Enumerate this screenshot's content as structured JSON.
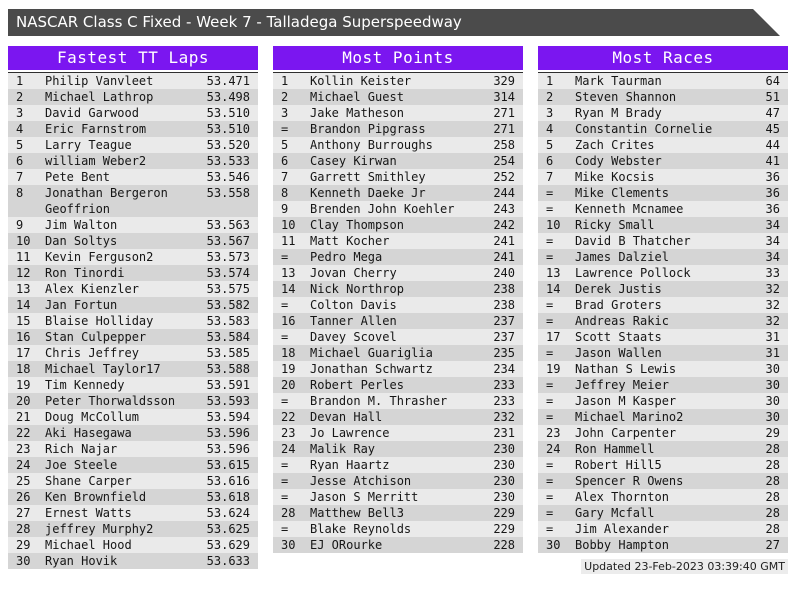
{
  "title_bar": {
    "text": "NASCAR Class C Fixed - Week 7 - Talladega Superspeedway"
  },
  "footer": {
    "updated": "Updated 23-Feb-2023 03:39:40 GMT"
  },
  "colors": {
    "accent_purple": "#7b16f0",
    "title_bar_bg": "#4b4b4b",
    "row_light": "#eaeaea",
    "row_dark": "#d5d5d5",
    "divider": "#2e2e2e"
  },
  "tables": [
    {
      "title": "Fastest TT Laps",
      "rows": [
        {
          "rank": "1",
          "name": "Philip Vanvleet",
          "value": "53.471"
        },
        {
          "rank": "2",
          "name": "Michael Lathrop",
          "value": "53.498"
        },
        {
          "rank": "3",
          "name": "David Garwood",
          "value": "53.510"
        },
        {
          "rank": "4",
          "name": "Eric Farnstrom",
          "value": "53.510"
        },
        {
          "rank": "5",
          "name": "Larry Teague",
          "value": "53.520"
        },
        {
          "rank": "6",
          "name": "william Weber2",
          "value": "53.533"
        },
        {
          "rank": "7",
          "name": "Pete Bent",
          "value": "53.546"
        },
        {
          "rank": "8",
          "name": "Jonathan Bergeron Geoffrion",
          "value": "53.558"
        },
        {
          "rank": "9",
          "name": "Jim Walton",
          "value": "53.563"
        },
        {
          "rank": "10",
          "name": "Dan Soltys",
          "value": "53.567"
        },
        {
          "rank": "11",
          "name": "Kevin Ferguson2",
          "value": "53.573"
        },
        {
          "rank": "12",
          "name": "Ron Tinordi",
          "value": "53.574"
        },
        {
          "rank": "13",
          "name": "Alex Kienzler",
          "value": "53.575"
        },
        {
          "rank": "14",
          "name": "Jan Fortun",
          "value": "53.582"
        },
        {
          "rank": "15",
          "name": "Blaise Holliday",
          "value": "53.583"
        },
        {
          "rank": "16",
          "name": "Stan Culpepper",
          "value": "53.584"
        },
        {
          "rank": "17",
          "name": "Chris Jeffrey",
          "value": "53.585"
        },
        {
          "rank": "18",
          "name": "Michael Taylor17",
          "value": "53.588"
        },
        {
          "rank": "19",
          "name": "Tim Kennedy",
          "value": "53.591"
        },
        {
          "rank": "20",
          "name": "Peter Thorwaldsson",
          "value": "53.593"
        },
        {
          "rank": "21",
          "name": "Doug McCollum",
          "value": "53.594"
        },
        {
          "rank": "22",
          "name": "Aki Hasegawa",
          "value": "53.596"
        },
        {
          "rank": "23",
          "name": "Rich Najar",
          "value": "53.596"
        },
        {
          "rank": "24",
          "name": "Joe Steele",
          "value": "53.615"
        },
        {
          "rank": "25",
          "name": "Shane Carper",
          "value": "53.616"
        },
        {
          "rank": "26",
          "name": "Ken Brownfield",
          "value": "53.618"
        },
        {
          "rank": "27",
          "name": "Ernest Watts",
          "value": "53.624"
        },
        {
          "rank": "28",
          "name": "jeffrey Murphy2",
          "value": "53.625"
        },
        {
          "rank": "29",
          "name": "Michael Hood",
          "value": "53.629"
        },
        {
          "rank": "30",
          "name": "Ryan Hovik",
          "value": "53.633"
        }
      ]
    },
    {
      "title": "Most Points",
      "rows": [
        {
          "rank": "1",
          "name": "Kollin Keister",
          "value": "329"
        },
        {
          "rank": "2",
          "name": "Michael Guest",
          "value": "314"
        },
        {
          "rank": "3",
          "name": "Jake Matheson",
          "value": "271"
        },
        {
          "rank": "=",
          "name": "Brandon Pipgrass",
          "value": "271"
        },
        {
          "rank": "5",
          "name": "Anthony Burroughs",
          "value": "258"
        },
        {
          "rank": "6",
          "name": "Casey Kirwan",
          "value": "254"
        },
        {
          "rank": "7",
          "name": "Garrett Smithley",
          "value": "252"
        },
        {
          "rank": "8",
          "name": "Kenneth Daeke Jr",
          "value": "244"
        },
        {
          "rank": "9",
          "name": "Brenden John Koehler",
          "value": "243"
        },
        {
          "rank": "10",
          "name": "Clay Thompson",
          "value": "242"
        },
        {
          "rank": "11",
          "name": "Matt Kocher",
          "value": "241"
        },
        {
          "rank": "=",
          "name": "Pedro Mega",
          "value": "241"
        },
        {
          "rank": "13",
          "name": "Jovan Cherry",
          "value": "240"
        },
        {
          "rank": "14",
          "name": "Nick Northrop",
          "value": "238"
        },
        {
          "rank": "=",
          "name": "Colton Davis",
          "value": "238"
        },
        {
          "rank": "16",
          "name": "Tanner Allen",
          "value": "237"
        },
        {
          "rank": "=",
          "name": "Davey Scovel",
          "value": "237"
        },
        {
          "rank": "18",
          "name": "Michael Guariglia",
          "value": "235"
        },
        {
          "rank": "19",
          "name": "Jonathan Schwartz",
          "value": "234"
        },
        {
          "rank": "20",
          "name": "Robert Perles",
          "value": "233"
        },
        {
          "rank": "=",
          "name": "Brandon M. Thrasher",
          "value": "233"
        },
        {
          "rank": "22",
          "name": "Devan Hall",
          "value": "232"
        },
        {
          "rank": "23",
          "name": "Jo Lawrence",
          "value": "231"
        },
        {
          "rank": "24",
          "name": "Malik Ray",
          "value": "230"
        },
        {
          "rank": "=",
          "name": "Ryan Haartz",
          "value": "230"
        },
        {
          "rank": "=",
          "name": "Jesse Atchison",
          "value": "230"
        },
        {
          "rank": "=",
          "name": "Jason S Merritt",
          "value": "230"
        },
        {
          "rank": "28",
          "name": "Matthew Bell3",
          "value": "229"
        },
        {
          "rank": "=",
          "name": "Blake Reynolds",
          "value": "229"
        },
        {
          "rank": "30",
          "name": "EJ ORourke",
          "value": "228"
        }
      ]
    },
    {
      "title": "Most Races",
      "rows": [
        {
          "rank": "1",
          "name": "Mark Taurman",
          "value": "64"
        },
        {
          "rank": "2",
          "name": "Steven Shannon",
          "value": "51"
        },
        {
          "rank": "3",
          "name": "Ryan M Brady",
          "value": "47"
        },
        {
          "rank": "4",
          "name": "Constantin Cornelie",
          "value": "45"
        },
        {
          "rank": "5",
          "name": "Zach Crites",
          "value": "44"
        },
        {
          "rank": "6",
          "name": "Cody Webster",
          "value": "41"
        },
        {
          "rank": "7",
          "name": "Mike Kocsis",
          "value": "36"
        },
        {
          "rank": "=",
          "name": "Mike Clements",
          "value": "36"
        },
        {
          "rank": "=",
          "name": "Kenneth Mcnamee",
          "value": "36"
        },
        {
          "rank": "10",
          "name": "Ricky Small",
          "value": "34"
        },
        {
          "rank": "=",
          "name": "David B Thatcher",
          "value": "34"
        },
        {
          "rank": "=",
          "name": "James Dalziel",
          "value": "34"
        },
        {
          "rank": "13",
          "name": "Lawrence Pollock",
          "value": "33"
        },
        {
          "rank": "14",
          "name": "Derek Justis",
          "value": "32"
        },
        {
          "rank": "=",
          "name": "Brad Groters",
          "value": "32"
        },
        {
          "rank": "=",
          "name": "Andreas Rakic",
          "value": "32"
        },
        {
          "rank": "17",
          "name": "Scott Staats",
          "value": "31"
        },
        {
          "rank": "=",
          "name": "Jason Wallen",
          "value": "31"
        },
        {
          "rank": "19",
          "name": "Nathan S Lewis",
          "value": "30"
        },
        {
          "rank": "=",
          "name": "Jeffrey Meier",
          "value": "30"
        },
        {
          "rank": "=",
          "name": "Jason M Kasper",
          "value": "30"
        },
        {
          "rank": "=",
          "name": "Michael Marino2",
          "value": "30"
        },
        {
          "rank": "23",
          "name": "John Carpenter",
          "value": "29"
        },
        {
          "rank": "24",
          "name": "Ron Hammell",
          "value": "28"
        },
        {
          "rank": "=",
          "name": "Robert Hill5",
          "value": "28"
        },
        {
          "rank": "=",
          "name": "Spencer R Owens",
          "value": "28"
        },
        {
          "rank": "=",
          "name": "Alex Thornton",
          "value": "28"
        },
        {
          "rank": "=",
          "name": "Gary Mcfall",
          "value": "28"
        },
        {
          "rank": "=",
          "name": "Jim Alexander",
          "value": "28"
        },
        {
          "rank": "30",
          "name": "Bobby Hampton",
          "value": "27"
        }
      ]
    }
  ]
}
